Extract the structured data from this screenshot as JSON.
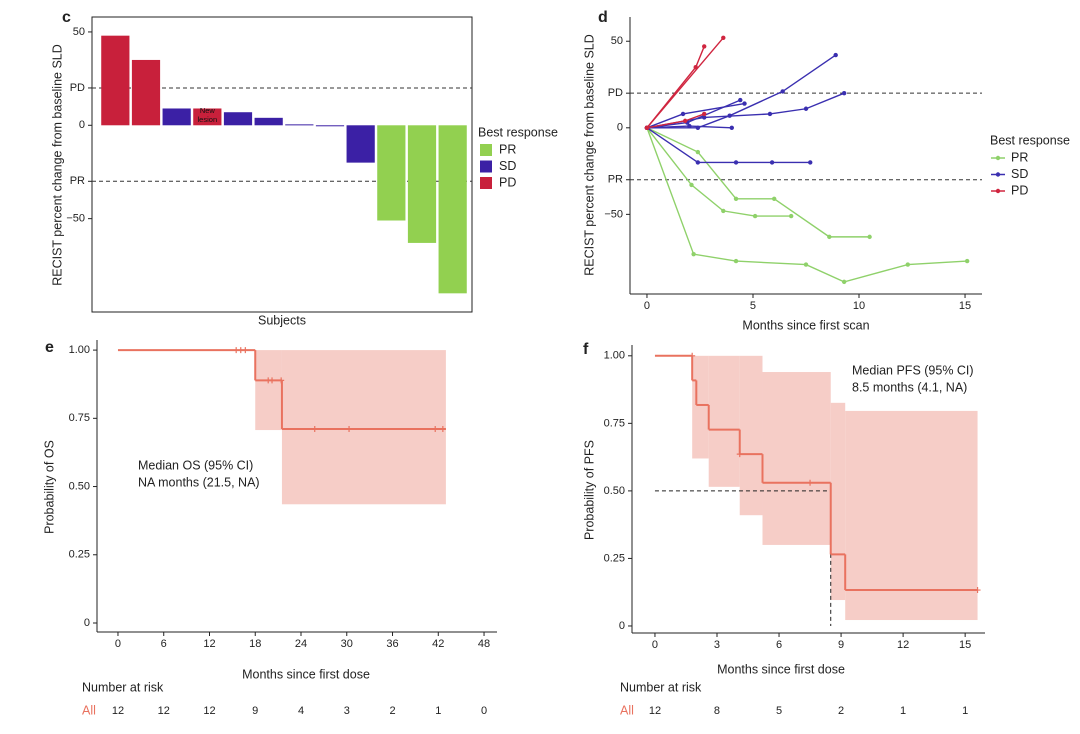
{
  "chart_data": [
    {
      "type": "bar",
      "panel": "c",
      "ylabel": "RECIST percent change from baseline SLD",
      "xlabel": "Subjects",
      "categories": [
        null,
        null,
        null,
        null,
        null,
        null,
        null,
        null,
        null,
        null,
        null,
        null
      ],
      "series": [
        {
          "name": "PR",
          "color": "#92d050",
          "values": [
            null,
            null,
            null,
            null,
            null,
            null,
            null,
            null,
            null,
            -51,
            -63,
            -90
          ]
        },
        {
          "name": "SD",
          "color": "#3b20a5",
          "values": [
            null,
            null,
            9,
            null,
            7,
            4,
            0.5,
            0,
            -20,
            null,
            null,
            null
          ]
        },
        {
          "name": "PD",
          "color": "#c8203b",
          "values": [
            48,
            35,
            null,
            9,
            null,
            null,
            null,
            null,
            null,
            null,
            null,
            null
          ]
        }
      ],
      "annotations": [
        {
          "text": "New lesion",
          "category": 3
        }
      ],
      "legend_title": "Best response",
      "ylim": [
        -100,
        58
      ],
      "yticks": [
        {
          "value": -50,
          "label": "−50"
        },
        {
          "value": -30,
          "label": "PR"
        },
        0,
        {
          "value": 20,
          "label": "PD"
        },
        50
      ],
      "reference_lines": [
        20,
        -30
      ]
    },
    {
      "type": "line",
      "panel": "d",
      "ylabel": "RECIST percent change from baseline SLD",
      "xlabel": "Months since first scan",
      "series": [
        {
          "name": "PR",
          "color": "#8fd16a",
          "lines": [
            {
              "x": [
                0,
                2.4,
                4.2,
                6.0,
                8.6,
                10.5
              ],
              "y": [
                0,
                -14,
                -41,
                -41,
                -63,
                -63
              ]
            },
            {
              "x": [
                0,
                2.1,
                3.6,
                5.1,
                6.8
              ],
              "y": [
                0,
                -33,
                -48,
                -51,
                -51
              ]
            },
            {
              "x": [
                0,
                2.2,
                4.2,
                7.5,
                9.3,
                12.3,
                15.1
              ],
              "y": [
                0,
                -73,
                -77,
                -79,
                -89,
                -79,
                -77
              ]
            }
          ]
        },
        {
          "name": "SD",
          "color": "#3a2fb0",
          "lines": [
            {
              "x": [
                0,
                2.4,
                4.2,
                5.9,
                7.7
              ],
              "y": [
                0,
                -20,
                -20,
                -20,
                -20
              ]
            },
            {
              "x": [
                0,
                1.9,
                4.4
              ],
              "y": [
                0,
                3,
                16
              ]
            },
            {
              "x": [
                0,
                2.4,
                3.9,
                6.4,
                8.9
              ],
              "y": [
                0,
                0,
                7,
                21,
                42
              ]
            },
            {
              "x": [
                0,
                1.7,
                4.6
              ],
              "y": [
                0,
                8,
                14
              ]
            },
            {
              "x": [
                0,
                2.7,
                5.8,
                7.5,
                9.3
              ],
              "y": [
                0,
                6,
                8,
                11,
                20
              ]
            },
            {
              "x": [
                0,
                2.0,
                4.0
              ],
              "y": [
                0,
                1,
                0
              ]
            }
          ]
        },
        {
          "name": "PD",
          "color": "#d0253f",
          "lines": [
            {
              "x": [
                0,
                2.3,
                2.7
              ],
              "y": [
                0,
                35,
                47
              ]
            },
            {
              "x": [
                0,
                3.6
              ],
              "y": [
                0,
                52
              ]
            },
            {
              "x": [
                0,
                1.8,
                2.7
              ],
              "y": [
                0,
                4,
                8
              ]
            }
          ]
        }
      ],
      "legend_title": "Best response",
      "xlim": [
        -0.8,
        15.8
      ],
      "xticks": [
        0,
        5,
        10,
        15
      ],
      "ylim": [
        -96,
        64
      ],
      "yticks": [
        {
          "value": -50,
          "label": "−50"
        },
        {
          "value": -30,
          "label": "PR"
        },
        0,
        {
          "value": 20,
          "label": "PD"
        },
        50
      ],
      "reference_lines": [
        20,
        -30
      ]
    },
    {
      "type": "survival",
      "panel": "e",
      "ylabel": "Probability of OS",
      "xlabel": "Months since first dose",
      "color": "#e9725f",
      "band_color": "#f5c4bd",
      "time": [
        0,
        18,
        21.5,
        43
      ],
      "survival": [
        1,
        0.889,
        0.711
      ],
      "ci_time": [
        18,
        21.5,
        43
      ],
      "ci_lower": [
        0.707,
        0.435
      ],
      "ci_upper": [
        1,
        1
      ],
      "censored": {
        "x": [
          15.5,
          16.1,
          16.7,
          19.7,
          20.2,
          21.4,
          25.8,
          30.3,
          41.6,
          42.6
        ],
        "y": [
          1,
          1,
          1,
          0.889,
          0.889,
          0.889,
          0.711,
          0.711,
          0.711,
          0.711
        ]
      },
      "annotation": [
        "Median OS (95% CI)",
        "NA months (21.5, NA)"
      ],
      "xlim": [
        -2.75,
        49.7
      ],
      "xticks": [
        0,
        6,
        12,
        18,
        24,
        30,
        36,
        42,
        48
      ],
      "ylim": [
        -0.033,
        1.037
      ],
      "yticks": [
        0,
        0.25,
        {
          "value": 0.5,
          "label": "0.50"
        },
        0.75,
        {
          "value": 1,
          "label": "1.00"
        }
      ],
      "at_risk": {
        "title": "Number at risk",
        "group": "All",
        "counts": [
          12,
          12,
          12,
          9,
          4,
          3,
          2,
          1,
          0
        ]
      }
    },
    {
      "type": "survival",
      "panel": "f",
      "ylabel": "Probability of PFS",
      "xlabel": "Months since first dose",
      "color": "#e9725f",
      "band_color": "#f5c4bd",
      "time": [
        0,
        1.8,
        2.0,
        2.6,
        4.1,
        5.2,
        8.5,
        9.2,
        15.6
      ],
      "survival": [
        1,
        0.909,
        0.818,
        0.727,
        0.636,
        0.53,
        0.265,
        0.133
      ],
      "ci_time": [
        1.8,
        2.6,
        4.1,
        5.2,
        8.5,
        9.2,
        15.6
      ],
      "ci_lower": [
        0.62,
        0.515,
        0.41,
        0.3,
        0.096,
        0.022
      ],
      "ci_upper": [
        1,
        1,
        1,
        0.94,
        0.826,
        0.796
      ],
      "censored": {
        "x": [
          1.8,
          4.1,
          7.5,
          15.6
        ],
        "y": [
          1,
          0.636,
          0.53,
          0.133
        ]
      },
      "median": {
        "x": 8.5,
        "y": 0.5
      },
      "annotation": [
        "Median PFS (95% CI)",
        "8.5 months (4.1, NA)"
      ],
      "xlim": [
        -1.11,
        15.96
      ],
      "xticks": [
        0,
        3,
        6,
        9,
        12,
        15
      ],
      "ylim": [
        -0.026,
        1.04
      ],
      "yticks": [
        0,
        0.25,
        {
          "value": 0.5,
          "label": "0.50"
        },
        0.75,
        {
          "value": 1,
          "label": "1.00"
        }
      ],
      "at_risk": {
        "title": "Number at risk",
        "group": "All",
        "counts": [
          12,
          8,
          5,
          2,
          1,
          1
        ]
      }
    }
  ]
}
